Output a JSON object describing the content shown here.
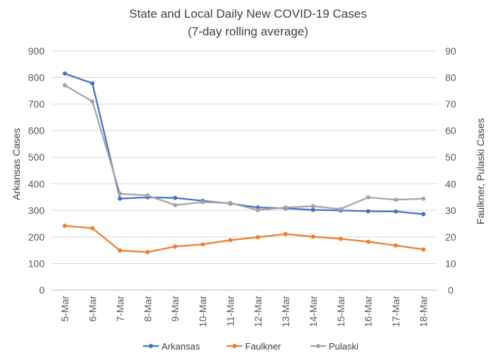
{
  "chart_data": {
    "type": "line",
    "title": "State and Local Daily New COVID-19 Cases",
    "subtitle": "(7-day rolling average)",
    "ylabel": "Arkansas Cases",
    "y2label": "Faulkner, Pulaski Cases",
    "ylim": [
      0,
      900
    ],
    "y2lim": [
      0,
      90
    ],
    "yticks": [
      "0",
      "100",
      "200",
      "300",
      "400",
      "500",
      "600",
      "700",
      "800",
      "900"
    ],
    "y2ticks": [
      "0",
      "10",
      "20",
      "30",
      "40",
      "50",
      "60",
      "70",
      "80",
      "90"
    ],
    "categories": [
      "5-Mar",
      "6-Mar",
      "7-Mar",
      "8-Mar",
      "9-Mar",
      "10-Mar",
      "11-Mar",
      "12-Mar",
      "13-Mar",
      "14-Mar",
      "15-Mar",
      "16-Mar",
      "17-Mar",
      "18-Mar"
    ],
    "grid": true,
    "legend_position": "bottom",
    "series": [
      {
        "name": "Arkansas",
        "axis": "left",
        "color": "#4472C4",
        "values": [
          815,
          778,
          344,
          349,
          347,
          336,
          326,
          311,
          308,
          302,
          300,
          297,
          296,
          286
        ]
      },
      {
        "name": "Faulkner",
        "axis": "right",
        "color": "#ED7D31",
        "values": [
          24.2,
          23.3,
          14.9,
          14.3,
          16.4,
          17.2,
          18.8,
          19.9,
          21.1,
          20.1,
          19.3,
          18.2,
          16.8,
          15.3
        ]
      },
      {
        "name": "Pulaski",
        "axis": "right",
        "color": "#A5A5A5",
        "values": [
          77.1,
          71.0,
          36.3,
          35.6,
          32.0,
          33.1,
          32.8,
          30.1,
          31.1,
          31.6,
          30.5,
          34.9,
          34.0,
          34.4
        ]
      }
    ]
  }
}
